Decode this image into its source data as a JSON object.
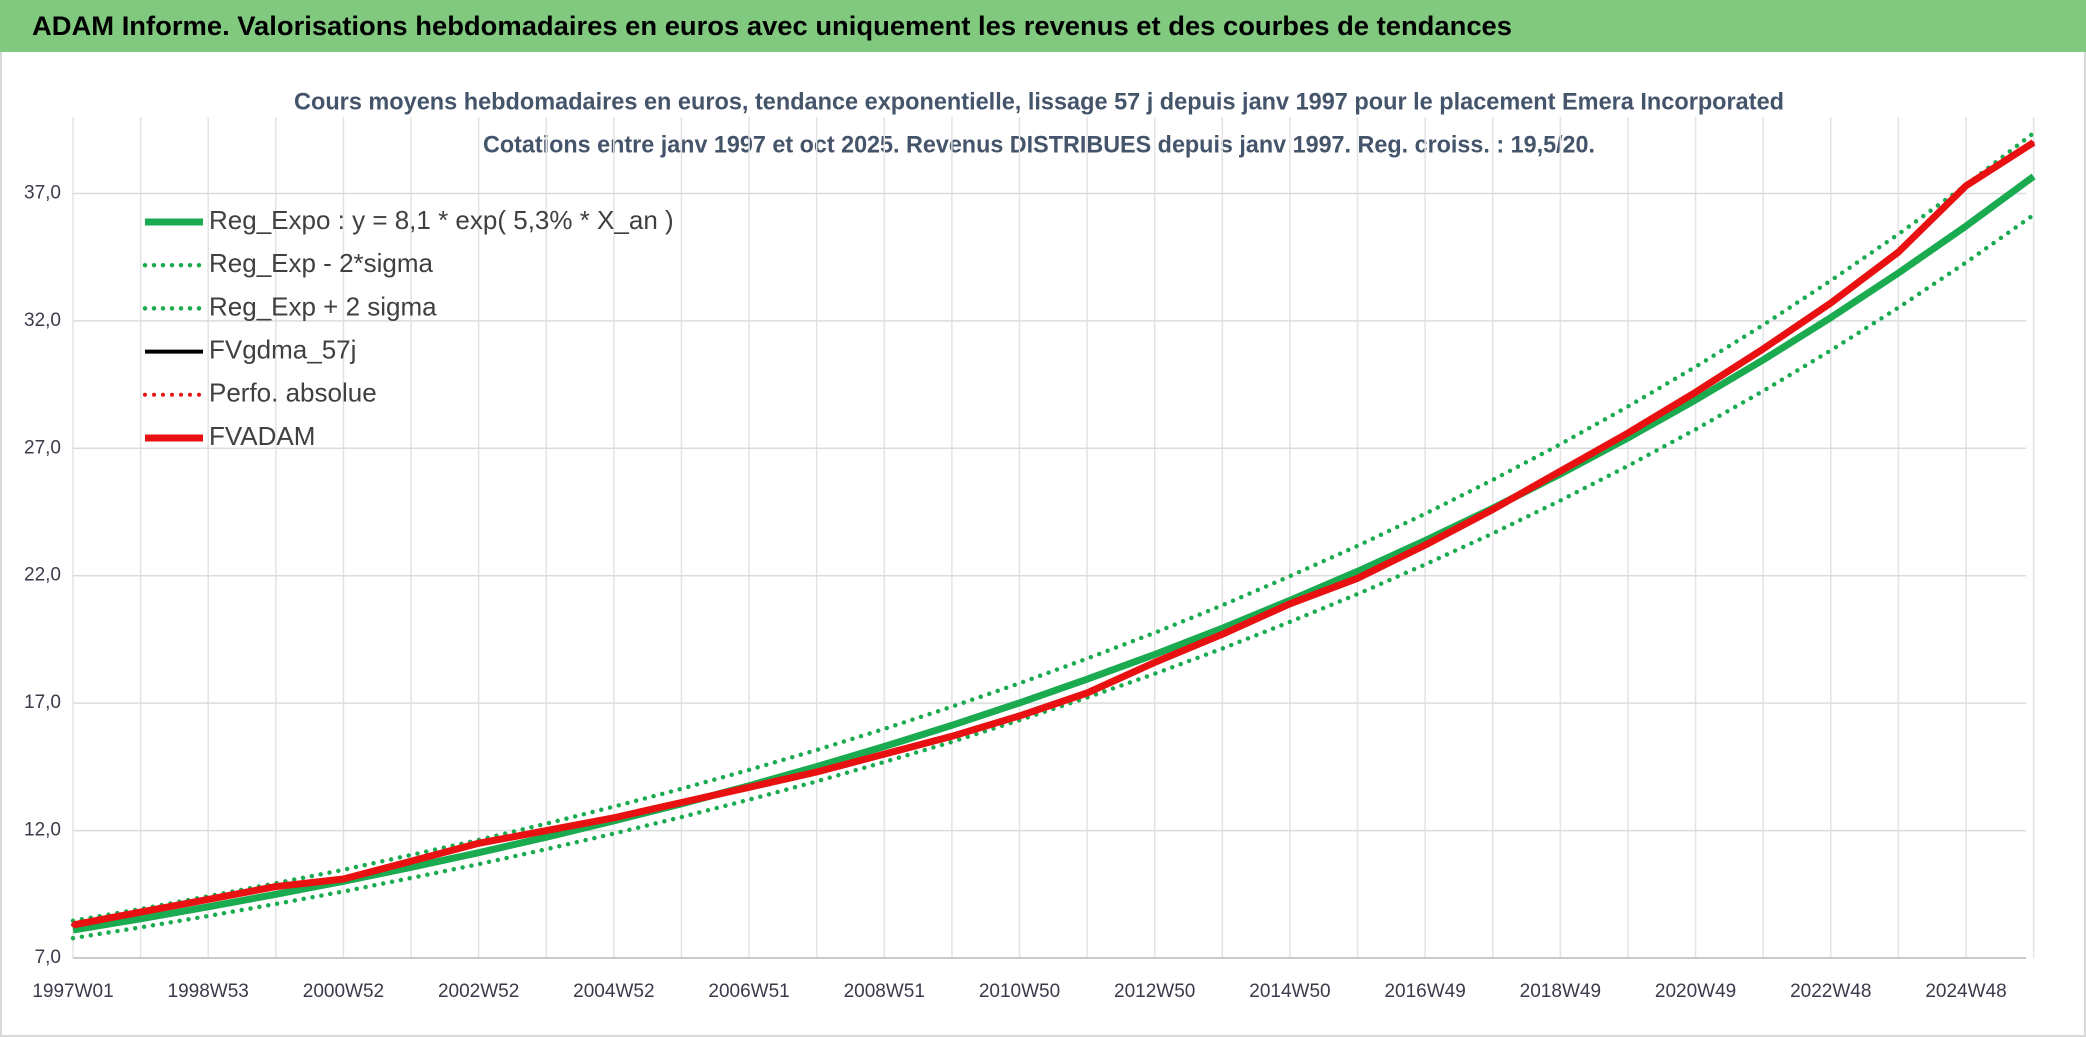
{
  "chart_data": {
    "type": "line",
    "header": "ADAM Informe. Valorisations hebdomadaires en euros avec uniquement les revenus et des courbes de tendances",
    "title": "Cours moyens hebdomadaires en euros, tendance exponentielle, lissage 57 j depuis janv 1997 pour le placement Emera Incorporated",
    "subtitle": "Cotations entre janv 1997 et oct 2025. Revenus DISTRIBUES depuis janv 1997. Reg. croiss. : 19,5/20.",
    "categories": [
      "1997W01",
      null,
      "1998W53",
      null,
      "2000W52",
      null,
      "2002W52",
      null,
      "2004W52",
      null,
      "2006W51",
      null,
      "2008W51",
      null,
      "2010W50",
      null,
      "2012W50",
      null,
      "2014W50",
      null,
      "2016W49",
      null,
      "2018W49",
      null,
      "2020W49",
      null,
      "2022W48",
      null,
      "2024W48",
      null
    ],
    "ylim": [
      7,
      40
    ],
    "yticks": [
      {
        "value": 7,
        "label": "7,0"
      },
      {
        "value": 12,
        "label": "12,0"
      },
      {
        "value": 17,
        "label": "17,0"
      },
      {
        "value": 22,
        "label": "22,0"
      },
      {
        "value": 27,
        "label": "27,0"
      },
      {
        "value": 32,
        "label": "32,0"
      },
      {
        "value": 37,
        "label": "37,0"
      }
    ],
    "grid": true,
    "legend": "top-left",
    "series": [
      {
        "name": "Reg_Expo : y = 8,1 * exp( 5,3% *  X_an )",
        "color": "#1aaa50",
        "style": "solid",
        "values": [
          8.1,
          8.54,
          9.01,
          9.5,
          10.01,
          10.56,
          11.13,
          11.74,
          12.38,
          13.05,
          13.76,
          14.51,
          15.3,
          16.13,
          17.01,
          17.94,
          18.91,
          19.94,
          21.03,
          22.17,
          23.38,
          24.65,
          25.99,
          27.41,
          28.9,
          30.47,
          32.13,
          33.88,
          35.72,
          37.67
        ]
      },
      {
        "name": "Reg_Exp - 2*sigma",
        "color": "#1aaa50",
        "style": "dotted",
        "values": [
          7.78,
          8.2,
          8.65,
          9.12,
          9.61,
          10.14,
          10.68,
          11.27,
          11.88,
          12.53,
          13.21,
          13.93,
          14.69,
          15.48,
          16.33,
          17.22,
          18.15,
          19.14,
          20.19,
          21.28,
          22.44,
          23.66,
          24.95,
          26.31,
          27.74,
          29.25,
          30.84,
          32.52,
          34.29,
          36.16
        ]
      },
      {
        "name": "Reg_Exp + 2 sigma",
        "color": "#1aaa50",
        "style": "dotted",
        "values": [
          8.46,
          8.92,
          9.42,
          9.93,
          10.46,
          11.04,
          11.63,
          12.27,
          12.94,
          13.64,
          14.38,
          15.16,
          15.99,
          16.86,
          17.78,
          18.75,
          19.76,
          20.84,
          21.98,
          23.17,
          24.43,
          25.76,
          27.16,
          28.64,
          30.2,
          31.84,
          33.58,
          35.4,
          37.33,
          39.37
        ]
      },
      {
        "name": "FVgdma_57j",
        "color": "#000000",
        "style": "solid",
        "values": [
          8.3,
          8.8,
          9.3,
          9.8,
          10.1,
          10.8,
          11.5,
          12.0,
          12.5,
          13.1,
          13.7,
          14.3,
          15.0,
          15.7,
          16.5,
          17.4,
          18.6,
          19.7,
          20.9,
          21.9,
          23.2,
          24.6,
          26.1,
          27.6,
          29.2,
          30.9,
          32.7,
          34.7,
          37.3,
          39.0
        ]
      },
      {
        "name": "Perfo. absolue",
        "color": "#e81010",
        "style": "dotted",
        "values": [
          8.3,
          8.8,
          9.3,
          9.8,
          10.1,
          10.8,
          11.5,
          12.0,
          12.5,
          13.1,
          13.7,
          14.3,
          15.0,
          15.7,
          16.5,
          17.4,
          18.6,
          19.7,
          20.9,
          21.9,
          23.2,
          24.6,
          26.1,
          27.6,
          29.2,
          30.9,
          32.7,
          34.7,
          37.3,
          39.0
        ]
      },
      {
        "name": "FVADAM",
        "color": "#e81010",
        "style": "solid",
        "values": [
          8.3,
          8.8,
          9.3,
          9.8,
          10.1,
          10.8,
          11.5,
          12.0,
          12.5,
          13.1,
          13.7,
          14.3,
          15.0,
          15.7,
          16.5,
          17.4,
          18.6,
          19.7,
          20.9,
          21.9,
          23.2,
          24.6,
          26.1,
          27.6,
          29.2,
          30.9,
          32.7,
          34.7,
          37.3,
          39.0
        ]
      }
    ]
  }
}
